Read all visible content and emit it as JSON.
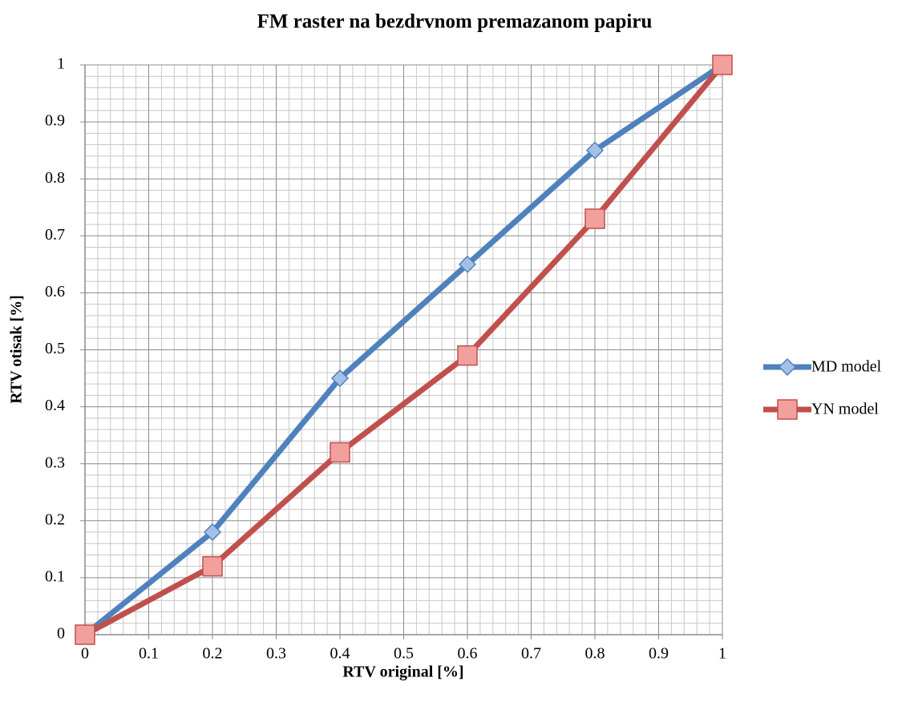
{
  "chart_data": {
    "type": "line",
    "title": "FM raster na bezdrvnom premazanom papiru",
    "xlabel": "RTV original [%]",
    "ylabel": "RTV otisak [%]",
    "xlim": [
      0,
      1
    ],
    "ylim": [
      0,
      1
    ],
    "xticks": [
      0,
      0.1,
      0.2,
      0.3,
      0.4,
      0.5,
      0.6,
      0.7,
      0.8,
      0.9,
      1
    ],
    "yticks": [
      0,
      0.1,
      0.2,
      0.3,
      0.4,
      0.5,
      0.6,
      0.7,
      0.8,
      0.9,
      1
    ],
    "grid": true,
    "minor_grid": true,
    "legend": "right",
    "x": [
      0,
      0.2,
      0.4,
      0.6,
      0.8,
      1
    ],
    "series": [
      {
        "name": "MD model",
        "color": "#4f81bd",
        "marker": "diamond",
        "values": [
          0,
          0.18,
          0.45,
          0.65,
          0.85,
          1
        ]
      },
      {
        "name": "YN model",
        "color": "#c0504d",
        "marker": "square",
        "values": [
          0,
          0.12,
          0.32,
          0.49,
          0.73,
          1
        ]
      }
    ]
  }
}
